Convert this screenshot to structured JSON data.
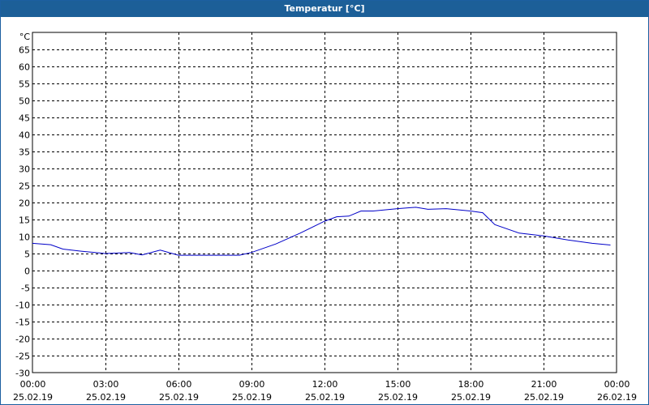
{
  "window": {
    "title": "Temperatur [°C]"
  },
  "colors": {
    "titlebar": "#1c5f98",
    "series": "#0000c8",
    "grid": "#000000"
  },
  "chart_data": {
    "type": "line",
    "title": "Temperatur [°C]",
    "ylabel": "°C",
    "xlabel": "",
    "ylim": [
      -30,
      70
    ],
    "y_ticks": [
      -30,
      -25,
      -20,
      -15,
      -10,
      -5,
      0,
      5,
      10,
      15,
      20,
      25,
      30,
      35,
      40,
      45,
      50,
      55,
      60,
      65
    ],
    "x_ticks": [
      {
        "time": "00:00",
        "date": "25.02.19"
      },
      {
        "time": "03:00",
        "date": "25.02.19"
      },
      {
        "time": "06:00",
        "date": "25.02.19"
      },
      {
        "time": "09:00",
        "date": "25.02.19"
      },
      {
        "time": "12:00",
        "date": "25.02.19"
      },
      {
        "time": "15:00",
        "date": "25.02.19"
      },
      {
        "time": "18:00",
        "date": "25.02.19"
      },
      {
        "time": "21:00",
        "date": "25.02.19"
      },
      {
        "time": "00:00",
        "date": "26.02.19"
      }
    ],
    "grid": true,
    "series": [
      {
        "x": [
          "00:00",
          "00:45",
          "01:15",
          "02:00",
          "03:00",
          "04:00",
          "04:30",
          "05:15",
          "06:00",
          "06:30",
          "07:30",
          "08:30",
          "09:00",
          "10:00",
          "11:00",
          "12:00",
          "12:30",
          "13:00",
          "13:30",
          "14:00",
          "15:00",
          "15:45",
          "16:15",
          "17:00",
          "18:00",
          "18:30",
          "19:00",
          "20:00",
          "21:00",
          "22:00",
          "23:00",
          "23:45"
        ],
        "y": [
          8.0,
          7.6,
          6.3,
          5.7,
          5.0,
          5.3,
          4.6,
          6.0,
          4.5,
          4.5,
          4.5,
          4.5,
          5.3,
          7.8,
          11.0,
          14.5,
          15.8,
          16.0,
          17.5,
          17.5,
          18.2,
          18.6,
          18.0,
          18.2,
          17.5,
          17.0,
          13.5,
          11.0,
          10.2,
          9.0,
          8.0,
          7.5
        ]
      }
    ]
  }
}
